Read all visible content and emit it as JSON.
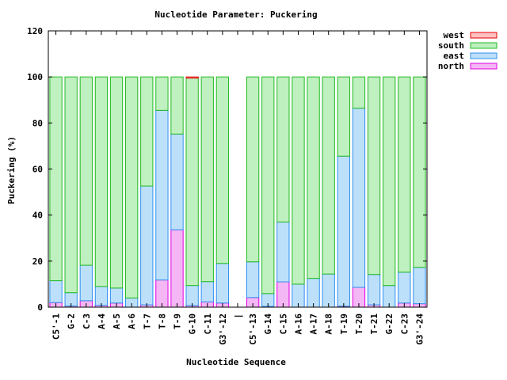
{
  "chart_data": {
    "type": "bar",
    "stacked": true,
    "title": "Nucleotide Parameter: Puckering",
    "xlabel": "Nucleotide Sequence",
    "ylabel": "Puckering (%)",
    "ylim": [
      0,
      120
    ],
    "yticks": [
      0,
      20,
      40,
      60,
      80,
      100,
      120
    ],
    "grid": false,
    "legend_position": "top-right",
    "categories": [
      "C5'-1",
      "G-2",
      "C-3",
      "A-4",
      "A-5",
      "A-6",
      "T-7",
      "T-8",
      "T-9",
      "G-10",
      "C-11",
      "G3'-12",
      "|",
      "C5'-13",
      "G-14",
      "C-15",
      "A-16",
      "A-17",
      "A-18",
      "T-19",
      "T-20",
      "T-21",
      "G-22",
      "C-23",
      "G3'-24"
    ],
    "series": [
      {
        "name": "north",
        "fill": "#f4b6f4",
        "stroke": "#e000e0",
        "values": [
          2,
          0.5,
          2.8,
          0.8,
          1.8,
          0,
          1,
          11.8,
          33.6,
          0.7,
          2.3,
          1.8,
          null,
          4.2,
          0.3,
          11,
          0,
          0,
          0,
          0.4,
          8.6,
          1,
          0,
          1.8,
          1.5
        ]
      },
      {
        "name": "east",
        "fill": "#bde0fa",
        "stroke": "#2f8ff0",
        "values": [
          9.5,
          5.8,
          15.4,
          8.2,
          6.5,
          4,
          51.6,
          73.7,
          41.6,
          8.7,
          8.8,
          17.2,
          null,
          15.5,
          5.6,
          26,
          10,
          12.5,
          14.4,
          65.2,
          77.8,
          13.2,
          9.4,
          13.4,
          15.8
        ]
      },
      {
        "name": "south",
        "fill": "#bff0bf",
        "stroke": "#22bb22",
        "values": [
          88.5,
          93.7,
          81.8,
          91,
          91.7,
          96,
          47.4,
          14.5,
          24.8,
          90.1,
          88.9,
          81,
          null,
          80.3,
          94.1,
          63,
          90,
          87.5,
          85.6,
          34.4,
          13.6,
          85.8,
          90.6,
          84.8,
          82.7
        ]
      },
      {
        "name": "west",
        "fill": "#ffc0c0",
        "stroke": "#e00000",
        "values": [
          0,
          0,
          0,
          0,
          0,
          0,
          0,
          0,
          0,
          0.5,
          0,
          0,
          null,
          0,
          0,
          0,
          0,
          0,
          0,
          0,
          0,
          0,
          0,
          0,
          0
        ]
      }
    ],
    "legend_order": [
      "west",
      "south",
      "east",
      "north"
    ]
  }
}
